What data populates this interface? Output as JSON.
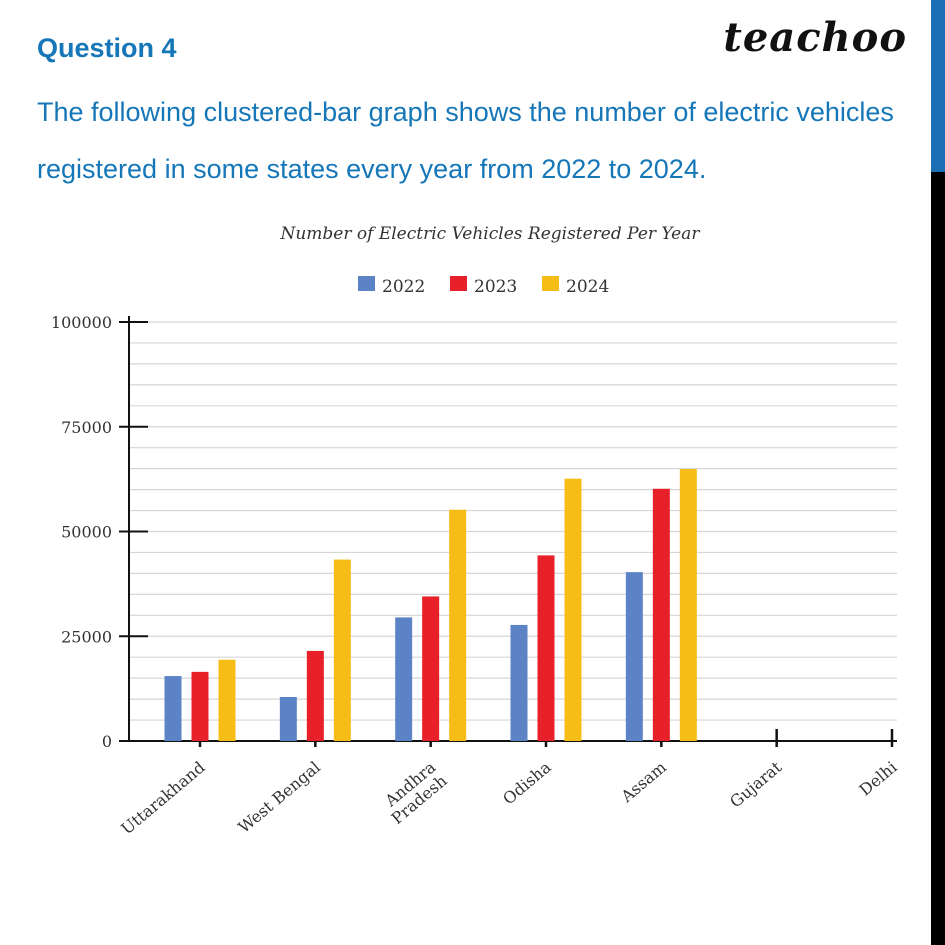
{
  "header": {
    "question_label": "Question 4",
    "brand": "teachoo",
    "question_text": "The following clustered-bar graph shows the number of electric vehicles registered in some states every year from 2022 to 2024."
  },
  "colors": {
    "accent": "#1576b8",
    "series_2022": "#5b83c5",
    "series_2023": "#e8202a",
    "series_2024": "#f7bd17"
  },
  "chart_data": {
    "type": "bar",
    "title": "Number of Electric Vehicles Registered Per Year",
    "categories": [
      "Uttarakhand",
      "West Bengal",
      "Andhra Pradesh",
      "Odisha",
      "Assam",
      "Gujarat",
      "Delhi"
    ],
    "series": [
      {
        "name": "2022",
        "color": "#5b83c5",
        "values": [
          15500,
          10500,
          29500,
          27700,
          40300,
          null,
          null
        ]
      },
      {
        "name": "2023",
        "color": "#e8202a",
        "values": [
          16500,
          21500,
          34500,
          44300,
          60200,
          null,
          null
        ]
      },
      {
        "name": "2024",
        "color": "#f7bd17",
        "values": [
          19400,
          43300,
          55200,
          62600,
          64900,
          null,
          null
        ]
      }
    ],
    "yticks": [
      0,
      25000,
      50000,
      75000,
      100000
    ],
    "ylim": [
      0,
      100000
    ],
    "grid": true,
    "legend": "top-center",
    "xlabel": "",
    "ylabel": ""
  }
}
